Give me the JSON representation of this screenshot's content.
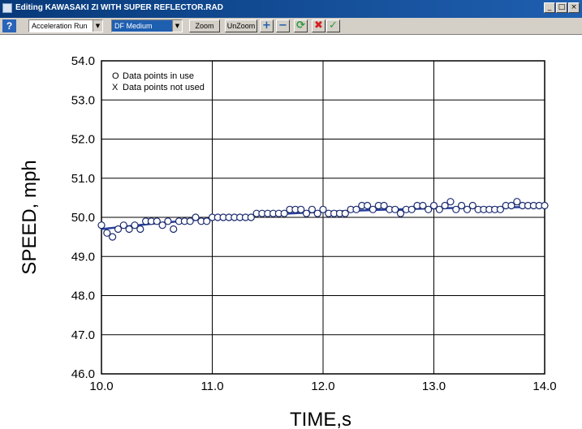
{
  "window": {
    "title": "Editing KAWASAKI ZI WITH SUPER REFLECTOR.RAD",
    "controls": {
      "minimize": "_",
      "maximize": "□",
      "close": "×"
    }
  },
  "toolbar": {
    "help_label": "?",
    "run_type": "Acceleration Run",
    "filter": "DF Medium",
    "zoom_label": "Zoom",
    "unzoom_label": "UnZoom",
    "plus_label": "+",
    "minus_label": "−",
    "refresh_label": "⟳",
    "reject_label": "✖",
    "accept_label": "✓",
    "icons": [
      "help-icon",
      "plus-icon",
      "minus-icon",
      "refresh-icon",
      "reject-icon",
      "accept-icon"
    ],
    "colors": {
      "help": "#2a64b8",
      "plus": "#1f5fb0",
      "minus": "#1f5fb0",
      "refresh": "#2e9a3a",
      "reject": "#d42020",
      "accept": "#2e9a3a"
    }
  },
  "chart_data": {
    "type": "scatter",
    "xlabel": "TIME,s",
    "ylabel": "SPEED, mph",
    "xlim": [
      10.0,
      14.0
    ],
    "ylim": [
      46.0,
      54.0
    ],
    "x_ticks": [
      "10.0",
      "11.0",
      "12.0",
      "13.0",
      "14.0"
    ],
    "y_ticks": [
      "46.0",
      "47.0",
      "48.0",
      "49.0",
      "50.0",
      "51.0",
      "52.0",
      "53.0",
      "54.0"
    ],
    "grid": true,
    "legend": {
      "placement": "top-left",
      "entries": [
        {
          "symbol": "O",
          "label": "Data points in use"
        },
        {
          "symbol": "X",
          "label": "Data points not used"
        }
      ]
    },
    "series": [
      {
        "marker": "circle",
        "marker_color": "#1a2a6e",
        "marker_fill": "#ffffff",
        "x": [
          10.0,
          10.05,
          10.1,
          10.15,
          10.2,
          10.25,
          10.3,
          10.35,
          10.4,
          10.45,
          10.5,
          10.55,
          10.6,
          10.65,
          10.7,
          10.75,
          10.8,
          10.85,
          10.9,
          10.95,
          11.0,
          11.05,
          11.1,
          11.15,
          11.2,
          11.25,
          11.3,
          11.35,
          11.4,
          11.45,
          11.5,
          11.55,
          11.6,
          11.65,
          11.7,
          11.75,
          11.8,
          11.85,
          11.9,
          11.95,
          12.0,
          12.05,
          12.1,
          12.15,
          12.2,
          12.25,
          12.3,
          12.35,
          12.4,
          12.45,
          12.5,
          12.55,
          12.6,
          12.65,
          12.7,
          12.75,
          12.8,
          12.85,
          12.9,
          12.95,
          13.0,
          13.05,
          13.1,
          13.15,
          13.2,
          13.25,
          13.3,
          13.35,
          13.4,
          13.45,
          13.5,
          13.55,
          13.6,
          13.65,
          13.7,
          13.75,
          13.8,
          13.85,
          13.9,
          13.95,
          14.0
        ],
        "y": [
          49.8,
          49.6,
          49.5,
          49.7,
          49.8,
          49.7,
          49.8,
          49.7,
          49.9,
          49.9,
          49.9,
          49.8,
          49.9,
          49.7,
          49.9,
          49.9,
          49.9,
          50.0,
          49.9,
          49.9,
          50.0,
          50.0,
          50.0,
          50.0,
          50.0,
          50.0,
          50.0,
          50.0,
          50.1,
          50.1,
          50.1,
          50.1,
          50.1,
          50.1,
          50.2,
          50.2,
          50.2,
          50.1,
          50.2,
          50.1,
          50.2,
          50.1,
          50.1,
          50.1,
          50.1,
          50.2,
          50.2,
          50.3,
          50.3,
          50.2,
          50.3,
          50.3,
          50.2,
          50.2,
          50.1,
          50.2,
          50.2,
          50.3,
          50.3,
          50.2,
          50.3,
          50.2,
          50.3,
          50.4,
          50.2,
          50.3,
          50.2,
          50.3,
          50.2,
          50.2,
          50.2,
          50.2,
          50.2,
          50.3,
          50.3,
          50.4,
          50.3,
          50.3,
          50.3,
          50.3,
          50.3
        ]
      },
      {
        "type": "line",
        "line_color": "#2a3f9e",
        "x": [
          10.0,
          10.5,
          11.0,
          11.5,
          12.0,
          12.5,
          13.0,
          13.5,
          14.0
        ],
        "y": [
          49.7,
          49.85,
          49.97,
          50.07,
          50.14,
          50.19,
          50.23,
          50.25,
          50.27
        ]
      }
    ]
  }
}
